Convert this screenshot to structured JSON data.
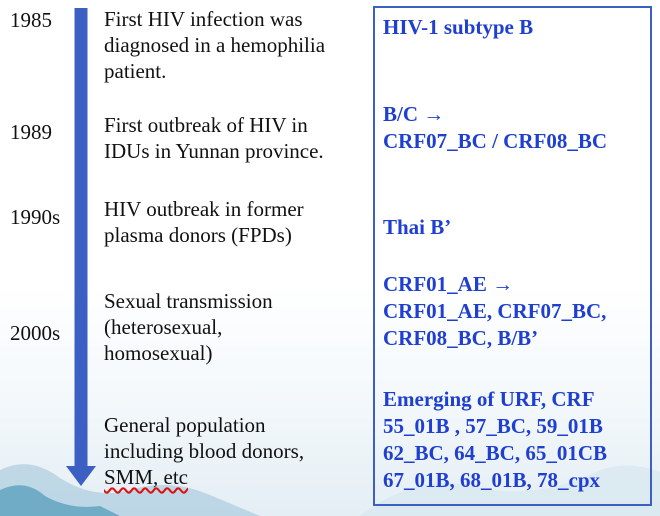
{
  "timeline": [
    {
      "year": "1985",
      "event": [
        "First HIV infection was",
        "diagnosed in a hemophilia",
        "patient."
      ]
    },
    {
      "year": "1989",
      "event": [
        "First outbreak of HIV in",
        "IDUs in Yunnan province."
      ]
    },
    {
      "year": "1990s",
      "event": [
        "HIV outbreak in former",
        "plasma donors (FPDs)"
      ]
    },
    {
      "year": "2000s",
      "event": [
        "Sexual transmission",
        "(heterosexual,",
        "homosexual)"
      ]
    },
    {
      "event": [
        "General population",
        "including blood donors,",
        "SMM, etc"
      ]
    }
  ],
  "subtypes": [
    [
      "HIV-1 subtype B"
    ],
    [
      "B/C →",
      "CRF07_BC / CRF08_BC"
    ],
    [
      "Thai B’"
    ],
    [
      "CRF01_AE →",
      "CRF01_AE, CRF07_BC,",
      "CRF08_BC, B/B’"
    ],
    [
      "Emerging of URF, CRF",
      "55_01B , 57_BC, 59_01B",
      "62_BC, 64_BC, 65_01CB",
      "67_01B, 68_01B, 78_cpx"
    ]
  ],
  "colors": {
    "arrow": "#3b5fc2",
    "subtype_text": "#1f3fd0",
    "panel_border": "#3b5fc2"
  }
}
